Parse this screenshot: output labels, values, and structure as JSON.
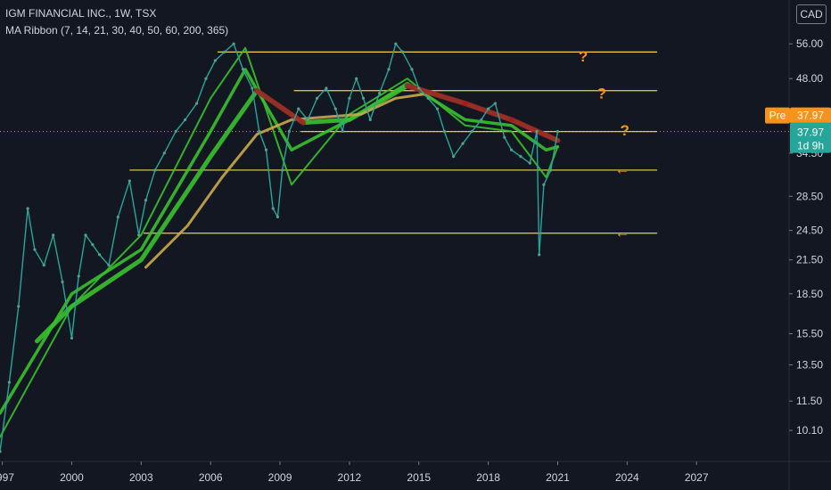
{
  "header": {
    "title": "IGM FINANCIAL INC., 1W, TSX",
    "indicator": "MA Ribbon (7, 14, 21, 30, 40, 50, 60, 200, 365)"
  },
  "currency": "CAD",
  "colors": {
    "background": "#131722",
    "level_line": "#f5d142",
    "annotation": "#f7931a",
    "ma_green": "#39c12e",
    "ma_red": "#a31a24",
    "ma_200": "#c9a84c",
    "price_tag": "#26a69a",
    "pre_tag": "#f7931a"
  },
  "chart_data": {
    "type": "line",
    "title": "IGM FINANCIAL INC., 1W, TSX",
    "xlabel": "",
    "ylabel": "",
    "scale": "log",
    "ylim": [
      8.8,
      68
    ],
    "xlim": [
      1996.9,
      2031
    ],
    "x_ticks": [
      "1997",
      "2000",
      "2003",
      "2006",
      "2009",
      "2012",
      "2015",
      "2018",
      "2021",
      "2024",
      "2027"
    ],
    "y_ticks": [
      56,
      48,
      40,
      34.5,
      28.5,
      24.5,
      21.5,
      18.5,
      15.5,
      13.5,
      11.5,
      10.1
    ],
    "y_tick_labels": [
      "56.00",
      "48.00",
      "40.00",
      "34.50",
      "28.50",
      "24.50",
      "21.50",
      "18.50",
      "15.50",
      "13.50",
      "11.50",
      "10.10"
    ],
    "series": [
      {
        "x": [
          1996.9,
          1997.3,
          1997.7,
          1998.1,
          1998.4,
          1998.8,
          1999.2,
          1999.6,
          2000.0,
          2000.3,
          2000.6,
          2000.9,
          2001.2,
          2001.6,
          2002.0,
          2002.5,
          2002.9,
          2003.2,
          2003.6,
          2004.0,
          2004.5,
          2004.9,
          2005.4,
          2005.8,
          2006.2,
          2006.6,
          2007.0,
          2007.4,
          2007.8,
          2008.1,
          2008.4,
          2008.7,
          2008.9,
          2009.1,
          2009.4,
          2009.8,
          2010.2,
          2010.6,
          2011.0,
          2011.4,
          2011.7,
          2012.0,
          2012.3,
          2012.6,
          2012.9,
          2013.3,
          2013.7,
          2014.0,
          2014.3,
          2014.7,
          2015.0,
          2015.4,
          2015.8,
          2016.1,
          2016.5,
          2016.9,
          2017.3,
          2017.7,
          2018.0,
          2018.3,
          2018.7,
          2019.0,
          2019.4,
          2019.8,
          2020.1,
          2020.2,
          2020.4,
          2020.7,
          2021.0
        ],
        "values": [
          9.2,
          12.5,
          17.5,
          27,
          22.5,
          21,
          24,
          19.5,
          15.2,
          20,
          24,
          23,
          22,
          21,
          26,
          30.5,
          24,
          28,
          32,
          34.5,
          38,
          40,
          43,
          48,
          52,
          54,
          56,
          50,
          46,
          38,
          35,
          27,
          26,
          32,
          38,
          42,
          40,
          44,
          46,
          42,
          38,
          44,
          48,
          44,
          40,
          45,
          50,
          56,
          54,
          50,
          46,
          44,
          42,
          38,
          34,
          36,
          38,
          40,
          42,
          43,
          37,
          35,
          34,
          33,
          38,
          22,
          30,
          32,
          37.97
        ]
      },
      {
        "name": "MA 7",
        "x": [
          1996.9,
          2000.0,
          2003.0,
          2006.0,
          2007.5,
          2009.5,
          2012.0,
          2014.5,
          2017.0,
          2019.0,
          2020.5,
          2021.0
        ],
        "values": [
          9.8,
          17.5,
          24,
          44,
          55,
          30,
          41,
          48,
          39,
          38,
          31,
          35.5
        ]
      },
      {
        "name": "MA 30",
        "x": [
          1996.9,
          2000.0,
          2003.0,
          2006.0,
          2007.5,
          2009.5,
          2012.0,
          2014.5,
          2017.0,
          2019.0,
          2020.5,
          2021.0
        ],
        "values": [
          10.9,
          18.5,
          22.5,
          38,
          50,
          35,
          40,
          47,
          40,
          39,
          35,
          35.5
        ]
      },
      {
        "name": "MA 60",
        "x": [
          1998.5,
          2000.0,
          2003.0,
          2006.0,
          2008.0,
          2010.0,
          2012.0,
          2014.5,
          2017.0,
          2019.0,
          2021.0
        ],
        "values": [
          15,
          17.5,
          21.5,
          34,
          45.5,
          39.5,
          40,
          46.5,
          43,
          40,
          36.5
        ]
      },
      {
        "name": "MA 200",
        "x": [
          2003.2,
          2005.0,
          2006.5,
          2008.0,
          2009.5,
          2011.0,
          2012.5,
          2014.0,
          2015.5
        ],
        "values": [
          20.8,
          25,
          31,
          37.5,
          40,
          40.5,
          41,
          44,
          45
        ]
      }
    ],
    "horizontal_levels": [
      {
        "value": 54,
        "x_from": 2006.3,
        "x_to": 2025.3
      },
      {
        "value": 45.5,
        "x_from": 2009.6,
        "x_to": 2025.3
      },
      {
        "value": 37.97,
        "x_from": 2009.9,
        "x_to": 2025.3
      },
      {
        "value": 32,
        "x_from": 2002.5,
        "x_to": 2025.3
      },
      {
        "value": 24.2,
        "x_from": 2003.1,
        "x_to": 2025.3
      }
    ],
    "annotations": [
      {
        "text": "?",
        "x": 2022.1,
        "y": 53
      },
      {
        "text": "?",
        "x": 2022.9,
        "y": 45
      },
      {
        "text": "?",
        "x": 2023.9,
        "y": 38.2
      },
      {
        "text": "←",
        "x": 2023.8,
        "y": 32.2
      },
      {
        "text": "←",
        "x": 2023.8,
        "y": 24.3
      }
    ],
    "price_label": {
      "value": "37.97",
      "countdown": "1d 9h"
    },
    "pre_label": {
      "prefix": "Pre",
      "value": "37.97"
    }
  }
}
